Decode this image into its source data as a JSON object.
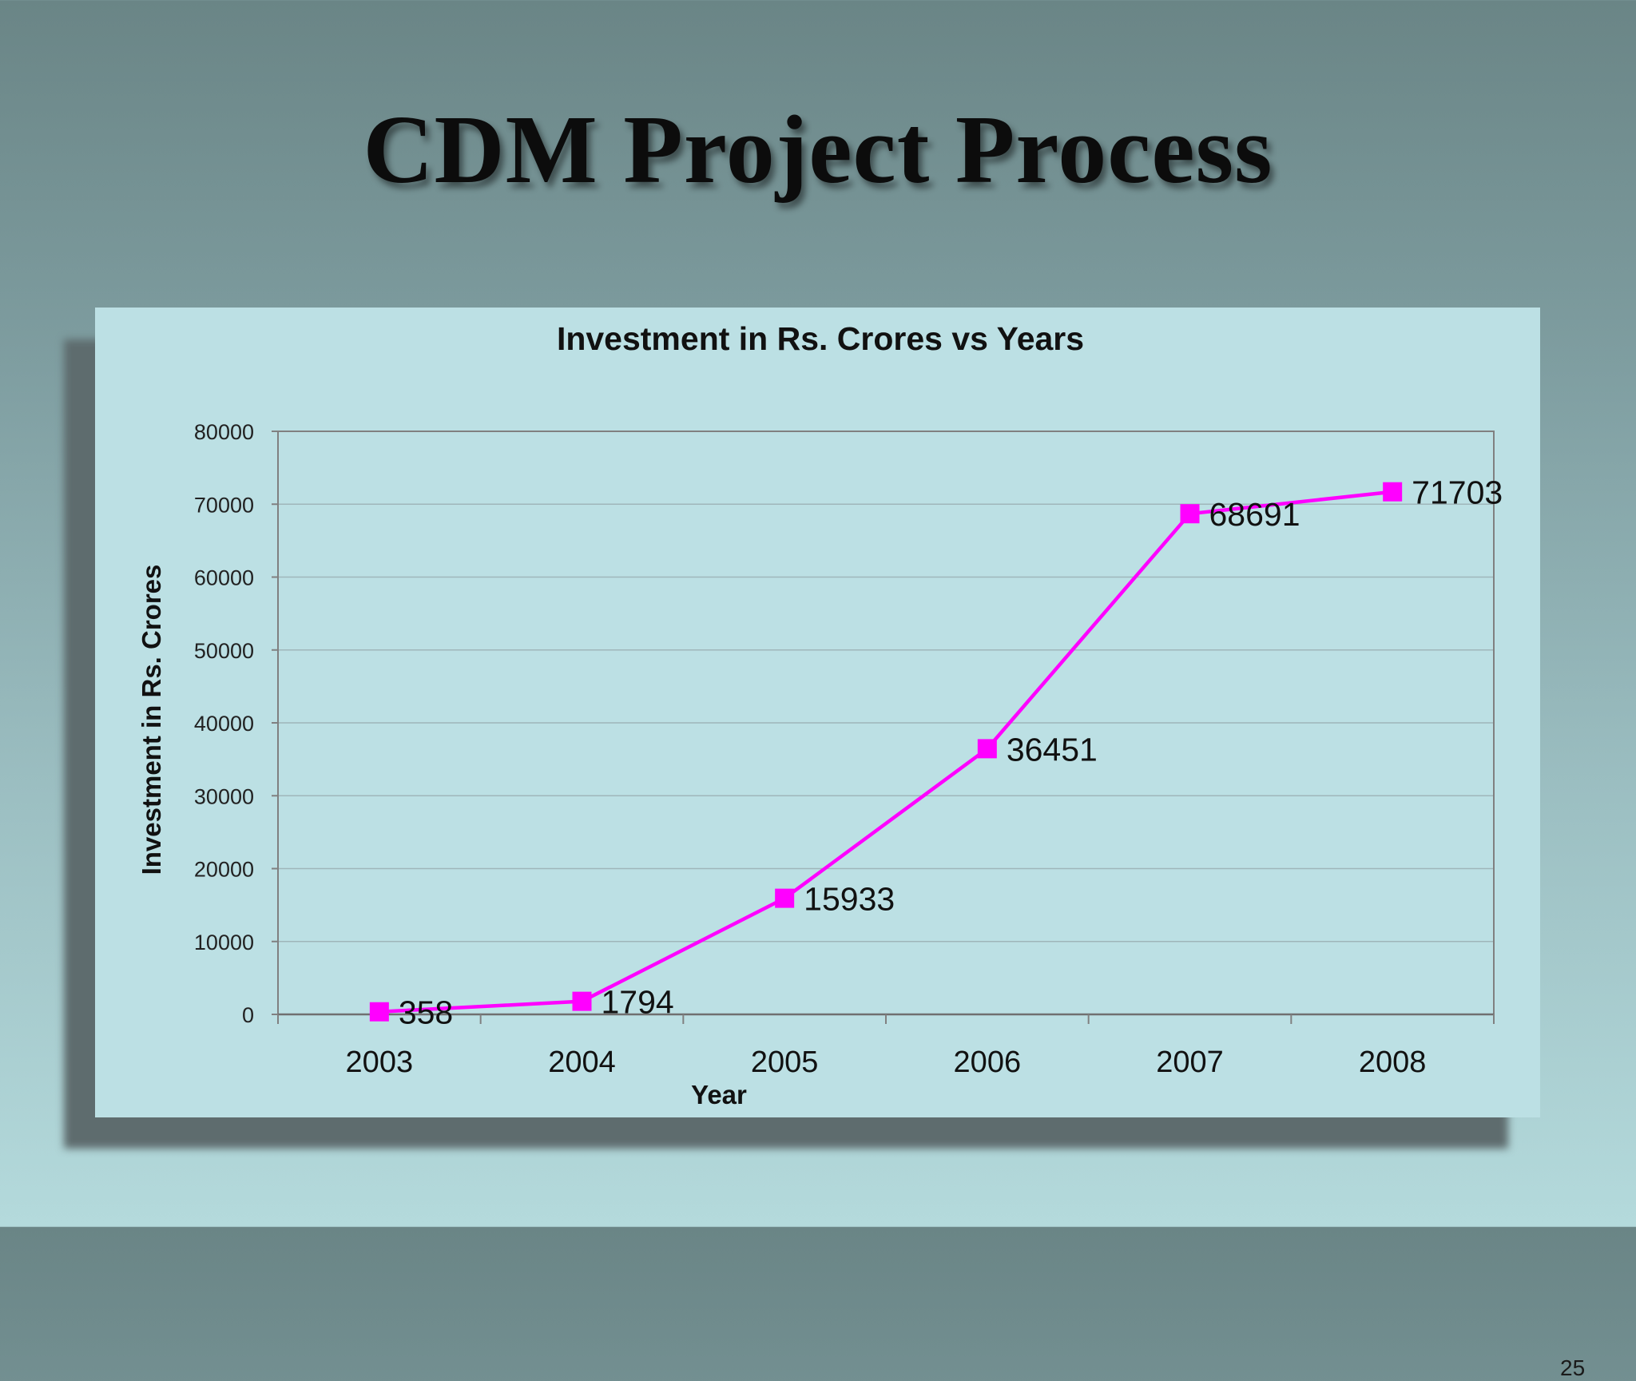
{
  "slide": {
    "title": "CDM Project Process",
    "page_number": "25"
  },
  "chart_data": {
    "type": "line",
    "title": "Investment in Rs. Crores vs Years",
    "xlabel": "Year",
    "ylabel": "Investment in Rs. Crores",
    "categories": [
      "2003",
      "2004",
      "2005",
      "2006",
      "2007",
      "2008"
    ],
    "series": [
      {
        "values": [
          358,
          1794,
          15933,
          36451,
          68691,
          71703
        ]
      }
    ],
    "ylim": [
      0,
      80000
    ],
    "yticks": [
      0,
      10000,
      20000,
      30000,
      40000,
      50000,
      60000,
      70000,
      80000
    ],
    "grid": true,
    "legend": "none",
    "marker": "square",
    "data_labels": true,
    "colors": {
      "series": "#ff00ff",
      "gridline": "#9fb6ba",
      "axis": "#808080",
      "panel": "#bce0e4"
    }
  }
}
